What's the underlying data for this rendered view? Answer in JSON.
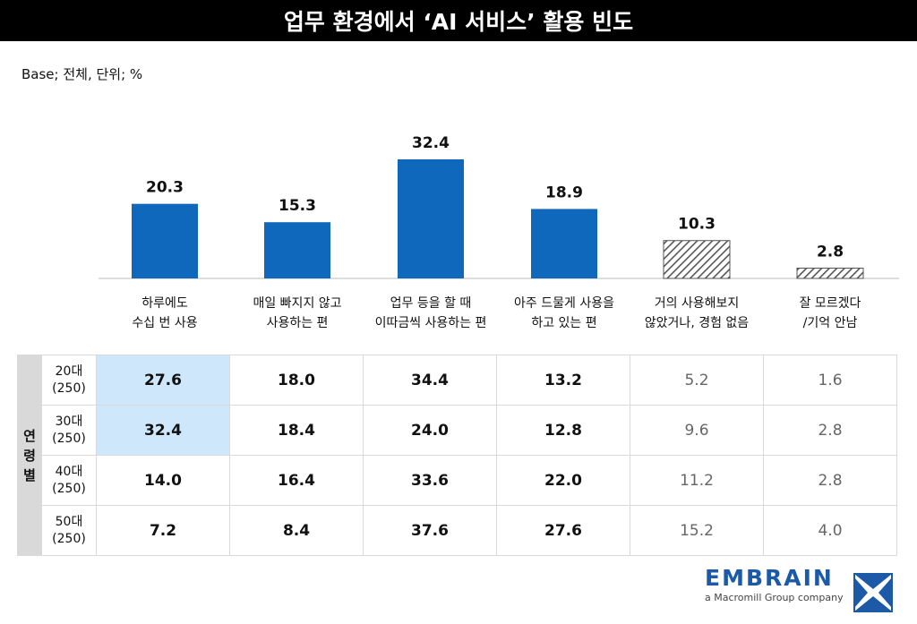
{
  "title": "업무 환경에서 ‘AI 서비스’ 활용 빈도",
  "base_note": "Base; 전체, 단위; %",
  "chart_data": {
    "type": "bar",
    "categories": [
      [
        "하루에도",
        "수십 번 사용"
      ],
      [
        "매일 빠지지 않고",
        "사용하는 편"
      ],
      [
        "업무 등을 할 때",
        "이따금씩 사용하는 편"
      ],
      [
        "아주 드물게 사용을",
        "하고 있는 편"
      ],
      [
        "거의 사용해보지",
        "않았거나, 경험 없음"
      ],
      [
        "잘 모르겠다",
        "/기억 안남"
      ]
    ],
    "values": [
      20.3,
      15.3,
      32.4,
      18.9,
      10.3,
      2.8
    ],
    "value_labels": [
      "20.3",
      "15.3",
      "32.4",
      "18.9",
      "10.3",
      "2.8"
    ],
    "bar_styles": [
      "solid",
      "solid",
      "solid",
      "solid",
      "hatched",
      "hatched"
    ],
    "ylim": [
      0,
      32.4
    ],
    "colors": {
      "solid": "#0f68bb",
      "hatched": "#555555",
      "baseline": "#bbbbbb"
    }
  },
  "table": {
    "side_label": [
      "연",
      "령",
      "별"
    ],
    "rows": [
      {
        "label": [
          "20대",
          "(250)"
        ],
        "values": [
          "27.6",
          "18.0",
          "34.4",
          "13.2",
          "5.2",
          "1.6"
        ]
      },
      {
        "label": [
          "30대",
          "(250)"
        ],
        "values": [
          "32.4",
          "18.4",
          "24.0",
          "12.8",
          "9.6",
          "2.8"
        ]
      },
      {
        "label": [
          "40대",
          "(250)"
        ],
        "values": [
          "14.0",
          "16.4",
          "33.6",
          "22.0",
          "11.2",
          "2.8"
        ]
      },
      {
        "label": [
          "50대",
          "(250)"
        ],
        "values": [
          "7.2",
          "8.4",
          "37.6",
          "27.6",
          "15.2",
          "4.0"
        ]
      }
    ],
    "highlight_color": "#cfe7fb"
  },
  "footer": {
    "logo_text": "EMBRAIN",
    "logo_sub": "a Macromill Group company",
    "logo_color": "#1c5aa8"
  }
}
